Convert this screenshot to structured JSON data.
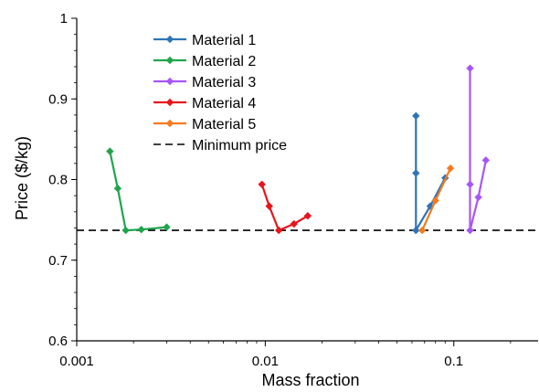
{
  "chart_data": {
    "type": "scatter",
    "title": "",
    "xlabel": "Mass fraction",
    "ylabel": "Price ($/kg)",
    "x_scale": "log",
    "xlim": [
      0.001,
      0.28
    ],
    "ylim": [
      0.6,
      1.0
    ],
    "x_ticks": [
      0.001,
      0.01,
      0.1
    ],
    "x_tick_labels": [
      "0.001",
      "0.01",
      "0.1"
    ],
    "y_ticks": [
      0.6,
      0.7,
      0.8,
      0.9,
      1.0
    ],
    "y_tick_labels": [
      "0.6",
      "0.7",
      "0.8",
      "0.9",
      "1"
    ],
    "legend_position": "top-center",
    "series": [
      {
        "name": "Material 1",
        "color": "#2E75B6",
        "marker": "diamond",
        "points": [
          [
            0.063,
            0.879
          ],
          [
            0.063,
            0.808
          ],
          [
            0.063,
            0.737
          ],
          [
            0.075,
            0.767
          ],
          [
            0.09,
            0.802
          ]
        ]
      },
      {
        "name": "Material 2",
        "color": "#1FA54C",
        "marker": "diamond",
        "points": [
          [
            0.0015,
            0.835
          ],
          [
            0.00165,
            0.789
          ],
          [
            0.00182,
            0.737
          ],
          [
            0.0022,
            0.738
          ],
          [
            0.003,
            0.741
          ]
        ]
      },
      {
        "name": "Material 3",
        "color": "#A855F7",
        "marker": "diamond",
        "points": [
          [
            0.122,
            0.938
          ],
          [
            0.122,
            0.794
          ],
          [
            0.122,
            0.737
          ],
          [
            0.135,
            0.778
          ],
          [
            0.148,
            0.824
          ]
        ]
      },
      {
        "name": "Material 4",
        "color": "#E8141C",
        "marker": "diamond",
        "points": [
          [
            0.0096,
            0.794
          ],
          [
            0.0105,
            0.767
          ],
          [
            0.0118,
            0.737
          ],
          [
            0.0142,
            0.745
          ],
          [
            0.0168,
            0.755
          ]
        ]
      },
      {
        "name": "Material 5",
        "color": "#F47A20",
        "marker": "diamond",
        "points": [
          [
            0.068,
            0.737
          ],
          [
            0.08,
            0.774
          ],
          [
            0.096,
            0.814
          ]
        ]
      }
    ],
    "reference_lines": [
      {
        "name": "Minimum price",
        "y": 0.737,
        "color": "#000000",
        "style": "dashed"
      }
    ]
  }
}
